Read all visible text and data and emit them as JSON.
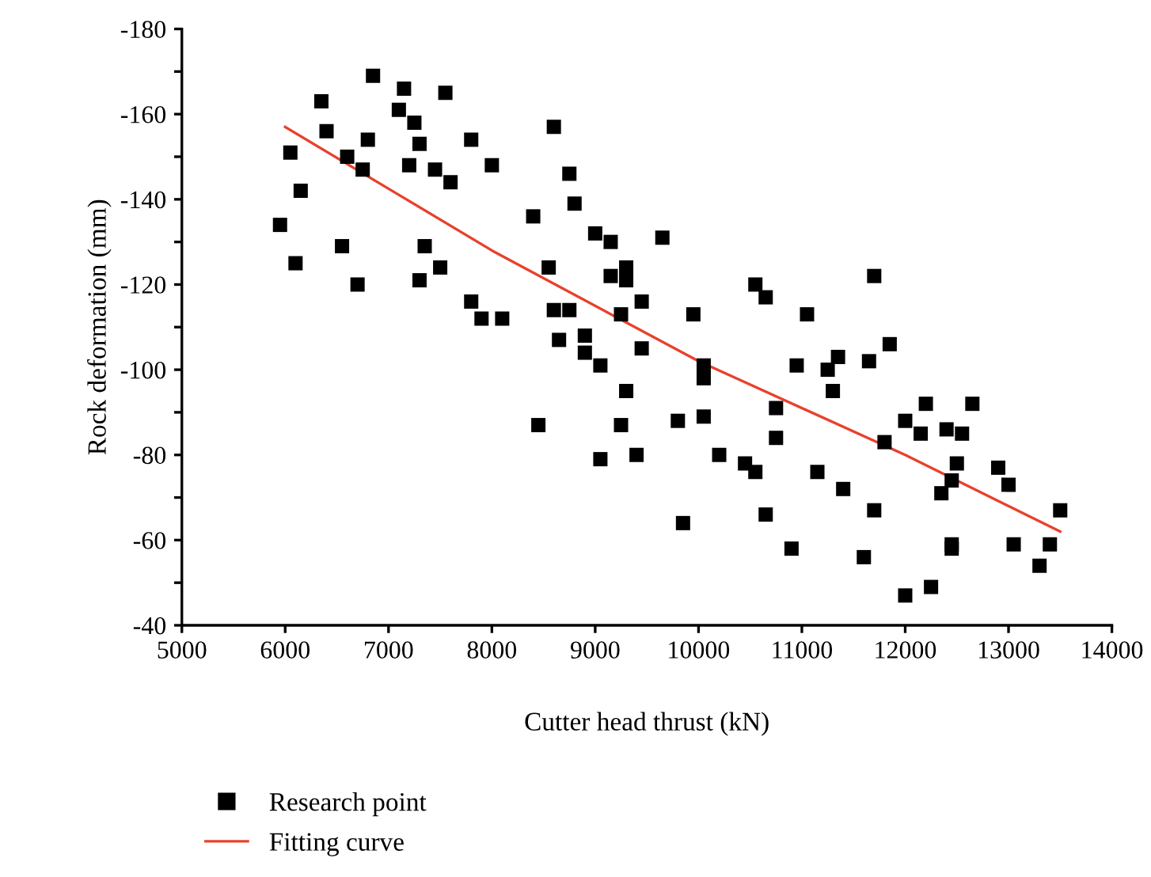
{
  "chart_data": {
    "type": "scatter",
    "xlabel": "Cutter head thrust (kN)",
    "ylabel": "Rock deformation (mm)",
    "xlim": [
      5000,
      14000
    ],
    "xticks": [
      5000,
      6000,
      7000,
      8000,
      9000,
      10000,
      11000,
      12000,
      13000,
      14000
    ],
    "ylim": [
      -40,
      -180
    ],
    "yticks": [
      -180,
      {
        "value": -170,
        "label": null
      },
      -160,
      {
        "value": -150,
        "label": null
      },
      -140,
      {
        "value": -130,
        "label": null
      },
      -120,
      {
        "value": -110,
        "label": null
      },
      -100,
      {
        "value": -90,
        "label": null
      },
      -80,
      {
        "value": -70,
        "label": null
      },
      -60,
      {
        "value": -50,
        "label": null
      },
      -40
    ],
    "grid": false,
    "legend": "bottom left",
    "series": [
      {
        "name": "Research point",
        "marker": "square",
        "color": "#000000",
        "x": [
          5950,
          6050,
          6100,
          6150,
          6350,
          6400,
          6550,
          6600,
          6700,
          6750,
          6800,
          6850,
          7100,
          7150,
          7200,
          7250,
          7300,
          7300,
          7350,
          7450,
          7500,
          7550,
          7600,
          7800,
          7800,
          7900,
          8000,
          8100,
          8400,
          8450,
          8550,
          8600,
          8600,
          8650,
          8750,
          8750,
          8800,
          8900,
          8900,
          9000,
          9050,
          9050,
          9150,
          9150,
          9250,
          9250,
          9300,
          9300,
          9300,
          9400,
          9450,
          9450,
          9650,
          9800,
          9850,
          9950,
          10050,
          10050,
          10050,
          10200,
          10450,
          10550,
          10550,
          10650,
          10650,
          10750,
          10750,
          10900,
          10950,
          11050,
          11150,
          11250,
          11300,
          11350,
          11400,
          11600,
          11650,
          11700,
          11700,
          11800,
          11850,
          12000,
          12000,
          12150,
          12200,
          12250,
          12350,
          12400,
          12450,
          12450,
          12450,
          12500,
          12550,
          12650,
          12900,
          13000,
          13050,
          13300,
          13400,
          13500
        ],
        "values": [
          -134,
          -151,
          -125,
          -142,
          -163,
          -156,
          -129,
          -150,
          -120,
          -147,
          -154,
          -169,
          -161,
          -166,
          -148,
          -158,
          -153,
          -121,
          -129,
          -147,
          -124,
          -165,
          -144,
          -154,
          -116,
          -112,
          -148,
          -112,
          -136,
          -87,
          -124,
          -157,
          -114,
          -107,
          -146,
          -114,
          -139,
          -108,
          -104,
          -132,
          -101,
          -79,
          -130,
          -122,
          -87,
          -113,
          -124,
          -121,
          -95,
          -80,
          -116,
          -105,
          -131,
          -88,
          -64,
          -113,
          -101,
          -98,
          -89,
          -80,
          -78,
          -120,
          -76,
          -66,
          -117,
          -84,
          -91,
          -58,
          -101,
          -113,
          -76,
          -100,
          -95,
          -103,
          -72,
          -56,
          -102,
          -67,
          -122,
          -83,
          -106,
          -88,
          -47,
          -85,
          -92,
          -49,
          -71,
          -86,
          -74,
          -58,
          -59,
          -78,
          -85,
          -92,
          -77,
          -73,
          -59,
          -54,
          -59,
          -67
        ]
      },
      {
        "name": "Fitting curve",
        "type": "line",
        "marker": "none",
        "line_style": "solid",
        "color": "#e8412c",
        "x": [
          6000,
          8000,
          10000,
          12000,
          13500
        ],
        "values": [
          -157,
          -128,
          -102,
          -80,
          -62
        ]
      }
    ]
  }
}
